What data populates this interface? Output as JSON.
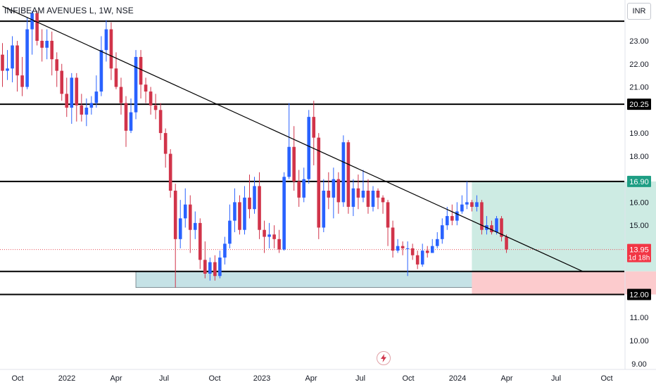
{
  "header": {
    "symbol_title": "INFIBEAM AVENUES L, 1W, NSE",
    "currency": "INR"
  },
  "colors": {
    "up": "#2962ff",
    "down": "#d1344a",
    "level_line": "#000000",
    "trend_line": "#000000",
    "support_zone": "#b2d8de",
    "target_zone": "#cdebe3",
    "stop_zone": "#fccbcd",
    "current_price_line": "#e8505b"
  },
  "price_scale": {
    "ticks": [
      "23.00",
      "22.00",
      "21.00",
      "19.00",
      "18.00",
      "16.00",
      "15.00",
      "11.00",
      "10.00",
      "9.00"
    ],
    "labels": [
      {
        "text": "20.25",
        "kind": "level"
      },
      {
        "text": "16.90",
        "kind": "target"
      },
      {
        "text": "13.95",
        "sub": "1d 18h",
        "kind": "current"
      },
      {
        "text": "12.00",
        "kind": "level"
      }
    ]
  },
  "time_axis": {
    "labels": [
      "Oct",
      "2022",
      "Apr",
      "Jul",
      "Oct",
      "2023",
      "Apr",
      "Jul",
      "Oct",
      "2024",
      "Apr",
      "Jul",
      "Oct"
    ]
  },
  "chart_data": {
    "type": "candlestick",
    "symbol": "INFIBEAM AVENUES L",
    "interval": "1W",
    "exchange": "NSE",
    "currency": "INR",
    "ylim": [
      8.8,
      24.2
    ],
    "horizontal_levels": [
      23.85,
      20.25,
      16.9,
      13.0,
      12.0
    ],
    "current_price": 13.95,
    "countdown": "1d 18h",
    "trend_line": {
      "from": {
        "date": "2021-10-25",
        "price": 24.5
      },
      "to": {
        "date": "2024-01-25",
        "price": 13.0
      }
    },
    "support_zone": {
      "from": "2022-05-02",
      "to": "2024-01-30",
      "top": 13.0,
      "bottom": 12.3
    },
    "long_position": {
      "start": "2023-08-21",
      "end": "2024-05-22",
      "entry": 13.0,
      "target": 16.9,
      "stop": 12.0
    },
    "candles": [
      {
        "o": 22.4,
        "c": 21.7,
        "h": 22.9,
        "l": 21.0
      },
      {
        "o": 21.7,
        "c": 21.8,
        "h": 22.6,
        "l": 21.3
      },
      {
        "o": 21.8,
        "c": 22.8,
        "h": 23.2,
        "l": 21.2
      },
      {
        "o": 22.8,
        "c": 21.5,
        "h": 23.0,
        "l": 20.8
      },
      {
        "o": 21.5,
        "c": 21.0,
        "h": 22.3,
        "l": 20.6
      },
      {
        "o": 21.0,
        "c": 23.5,
        "h": 24.0,
        "l": 20.9
      },
      {
        "o": 23.5,
        "c": 24.2,
        "h": 24.3,
        "l": 22.4
      },
      {
        "o": 24.2,
        "c": 23.0,
        "h": 24.3,
        "l": 22.8
      },
      {
        "o": 23.0,
        "c": 22.7,
        "h": 23.5,
        "l": 22.1
      },
      {
        "o": 22.7,
        "c": 23.0,
        "h": 23.5,
        "l": 22.2
      },
      {
        "o": 23.0,
        "c": 22.2,
        "h": 23.4,
        "l": 21.5
      },
      {
        "o": 22.2,
        "c": 21.7,
        "h": 22.5,
        "l": 21.0
      },
      {
        "o": 21.7,
        "c": 20.7,
        "h": 22.0,
        "l": 20.4
      },
      {
        "o": 20.7,
        "c": 20.1,
        "h": 21.4,
        "l": 19.7
      },
      {
        "o": 20.1,
        "c": 21.4,
        "h": 21.6,
        "l": 19.4
      },
      {
        "o": 21.4,
        "c": 20.2,
        "h": 21.6,
        "l": 19.5
      },
      {
        "o": 20.2,
        "c": 19.8,
        "h": 20.7,
        "l": 19.5
      },
      {
        "o": 19.8,
        "c": 20.1,
        "h": 20.5,
        "l": 19.3
      },
      {
        "o": 20.1,
        "c": 20.3,
        "h": 20.6,
        "l": 19.8
      },
      {
        "o": 20.3,
        "c": 20.8,
        "h": 21.5,
        "l": 20.1
      },
      {
        "o": 20.8,
        "c": 22.6,
        "h": 23.2,
        "l": 20.6
      },
      {
        "o": 22.6,
        "c": 23.5,
        "h": 23.9,
        "l": 22.1
      },
      {
        "o": 23.5,
        "c": 21.8,
        "h": 23.8,
        "l": 21.3
      },
      {
        "o": 21.8,
        "c": 21.0,
        "h": 22.5,
        "l": 20.9
      },
      {
        "o": 21.0,
        "c": 20.3,
        "h": 21.4,
        "l": 19.8
      },
      {
        "o": 20.3,
        "c": 19.1,
        "h": 20.6,
        "l": 18.4
      },
      {
        "o": 19.1,
        "c": 19.9,
        "h": 20.5,
        "l": 19.0
      },
      {
        "o": 19.9,
        "c": 22.3,
        "h": 22.6,
        "l": 19.6
      },
      {
        "o": 22.3,
        "c": 21.1,
        "h": 22.6,
        "l": 20.5
      },
      {
        "o": 21.1,
        "c": 20.8,
        "h": 21.4,
        "l": 20.3
      },
      {
        "o": 20.8,
        "c": 20.2,
        "h": 21.0,
        "l": 19.8
      },
      {
        "o": 20.2,
        "c": 20.0,
        "h": 20.7,
        "l": 19.6
      },
      {
        "o": 20.0,
        "c": 19.0,
        "h": 20.3,
        "l": 18.7
      },
      {
        "o": 19.0,
        "c": 18.1,
        "h": 19.2,
        "l": 17.5
      },
      {
        "o": 18.1,
        "c": 16.5,
        "h": 18.3,
        "l": 16.2
      },
      {
        "o": 16.5,
        "c": 14.4,
        "h": 16.8,
        "l": 12.3
      },
      {
        "o": 14.4,
        "c": 15.3,
        "h": 16.1,
        "l": 14.0
      },
      {
        "o": 15.3,
        "c": 15.9,
        "h": 16.6,
        "l": 14.9
      },
      {
        "o": 15.9,
        "c": 14.8,
        "h": 16.3,
        "l": 13.8
      },
      {
        "o": 14.8,
        "c": 15.1,
        "h": 15.6,
        "l": 14.4
      },
      {
        "o": 15.1,
        "c": 13.5,
        "h": 15.3,
        "l": 13.1
      },
      {
        "o": 13.5,
        "c": 12.9,
        "h": 14.3,
        "l": 12.7
      },
      {
        "o": 12.9,
        "c": 13.4,
        "h": 13.6,
        "l": 12.6
      },
      {
        "o": 13.4,
        "c": 12.8,
        "h": 13.7,
        "l": 12.6
      },
      {
        "o": 12.8,
        "c": 13.6,
        "h": 13.9,
        "l": 12.7
      },
      {
        "o": 13.6,
        "c": 14.2,
        "h": 14.5,
        "l": 13.3
      },
      {
        "o": 14.2,
        "c": 15.2,
        "h": 15.9,
        "l": 14.0
      },
      {
        "o": 15.2,
        "c": 16.0,
        "h": 16.6,
        "l": 14.7
      },
      {
        "o": 16.0,
        "c": 14.8,
        "h": 16.3,
        "l": 14.6
      },
      {
        "o": 14.8,
        "c": 16.2,
        "h": 16.7,
        "l": 14.6
      },
      {
        "o": 16.2,
        "c": 15.7,
        "h": 17.2,
        "l": 15.3
      },
      {
        "o": 15.7,
        "c": 16.7,
        "h": 17.1,
        "l": 15.5
      },
      {
        "o": 16.7,
        "c": 14.8,
        "h": 17.3,
        "l": 14.4
      },
      {
        "o": 14.8,
        "c": 14.5,
        "h": 15.2,
        "l": 13.8
      },
      {
        "o": 14.5,
        "c": 14.6,
        "h": 15.1,
        "l": 14.0
      },
      {
        "o": 14.6,
        "c": 14.4,
        "h": 15.0,
        "l": 14.0
      },
      {
        "o": 14.4,
        "c": 13.95,
        "h": 14.8,
        "l": 13.8
      },
      {
        "o": 13.95,
        "c": 17.1,
        "h": 17.3,
        "l": 13.9
      },
      {
        "o": 17.1,
        "c": 18.4,
        "h": 20.3,
        "l": 17.0
      },
      {
        "o": 18.4,
        "c": 16.9,
        "h": 19.3,
        "l": 16.5
      },
      {
        "o": 16.9,
        "c": 16.2,
        "h": 17.4,
        "l": 15.8
      },
      {
        "o": 16.2,
        "c": 17.0,
        "h": 17.5,
        "l": 16.0
      },
      {
        "o": 17.0,
        "c": 19.7,
        "h": 20.0,
        "l": 16.8
      },
      {
        "o": 19.7,
        "c": 18.8,
        "h": 20.4,
        "l": 17.6
      },
      {
        "o": 18.8,
        "c": 14.9,
        "h": 19.0,
        "l": 14.4
      },
      {
        "o": 14.9,
        "c": 16.5,
        "h": 17.0,
        "l": 14.7
      },
      {
        "o": 16.5,
        "c": 16.2,
        "h": 17.3,
        "l": 15.7
      },
      {
        "o": 16.2,
        "c": 17.0,
        "h": 17.5,
        "l": 15.3
      },
      {
        "o": 17.0,
        "c": 16.0,
        "h": 17.3,
        "l": 15.5
      },
      {
        "o": 16.0,
        "c": 18.6,
        "h": 18.9,
        "l": 15.8
      },
      {
        "o": 18.6,
        "c": 15.8,
        "h": 18.7,
        "l": 15.5
      },
      {
        "o": 15.8,
        "c": 16.6,
        "h": 17.0,
        "l": 15.4
      },
      {
        "o": 16.6,
        "c": 16.2,
        "h": 17.2,
        "l": 15.7
      },
      {
        "o": 16.2,
        "c": 16.5,
        "h": 17.4,
        "l": 16.0
      },
      {
        "o": 16.5,
        "c": 15.8,
        "h": 17.0,
        "l": 15.5
      },
      {
        "o": 15.8,
        "c": 16.5,
        "h": 16.7,
        "l": 15.6
      },
      {
        "o": 16.5,
        "c": 16.2,
        "h": 16.6,
        "l": 15.7
      },
      {
        "o": 16.2,
        "c": 16.0,
        "h": 16.3,
        "l": 15.5
      },
      {
        "o": 16.0,
        "c": 14.9,
        "h": 16.1,
        "l": 14.1
      },
      {
        "o": 14.9,
        "c": 13.9,
        "h": 15.2,
        "l": 13.6
      },
      {
        "o": 13.9,
        "c": 14.1,
        "h": 14.4,
        "l": 13.8
      },
      {
        "o": 14.1,
        "c": 14.0,
        "h": 14.3,
        "l": 13.7
      },
      {
        "o": 14.0,
        "c": 14.0,
        "h": 14.3,
        "l": 12.8
      },
      {
        "o": 14.0,
        "c": 13.7,
        "h": 14.2,
        "l": 13.5
      },
      {
        "o": 13.7,
        "c": 13.3,
        "h": 13.9,
        "l": 13.1
      },
      {
        "o": 13.3,
        "c": 13.9,
        "h": 14.2,
        "l": 13.2
      },
      {
        "o": 13.9,
        "c": 13.8,
        "h": 14.1,
        "l": 13.6
      },
      {
        "o": 13.8,
        "c": 14.1,
        "h": 14.4,
        "l": 13.8
      },
      {
        "o": 14.1,
        "c": 14.4,
        "h": 14.7,
        "l": 14.0
      },
      {
        "o": 14.4,
        "c": 15.0,
        "h": 15.3,
        "l": 14.2
      },
      {
        "o": 15.0,
        "c": 15.4,
        "h": 15.8,
        "l": 14.8
      },
      {
        "o": 15.4,
        "c": 15.2,
        "h": 15.9,
        "l": 15.0
      },
      {
        "o": 15.2,
        "c": 15.6,
        "h": 16.0,
        "l": 15.0
      },
      {
        "o": 15.6,
        "c": 15.9,
        "h": 16.3,
        "l": 15.5
      },
      {
        "o": 15.9,
        "c": 16.0,
        "h": 16.9,
        "l": 15.7
      },
      {
        "o": 16.0,
        "c": 15.8,
        "h": 16.1,
        "l": 15.6
      },
      {
        "o": 15.8,
        "c": 16.0,
        "h": 16.3,
        "l": 15.6
      },
      {
        "o": 16.0,
        "c": 14.8,
        "h": 16.1,
        "l": 14.6
      },
      {
        "o": 14.8,
        "c": 15.0,
        "h": 15.4,
        "l": 14.6
      },
      {
        "o": 15.0,
        "c": 14.7,
        "h": 15.2,
        "l": 14.6
      },
      {
        "o": 14.7,
        "c": 15.3,
        "h": 15.4,
        "l": 14.6
      },
      {
        "o": 15.3,
        "c": 14.5,
        "h": 15.4,
        "l": 14.3
      },
      {
        "o": 14.5,
        "c": 13.95,
        "h": 14.6,
        "l": 13.8
      }
    ]
  }
}
